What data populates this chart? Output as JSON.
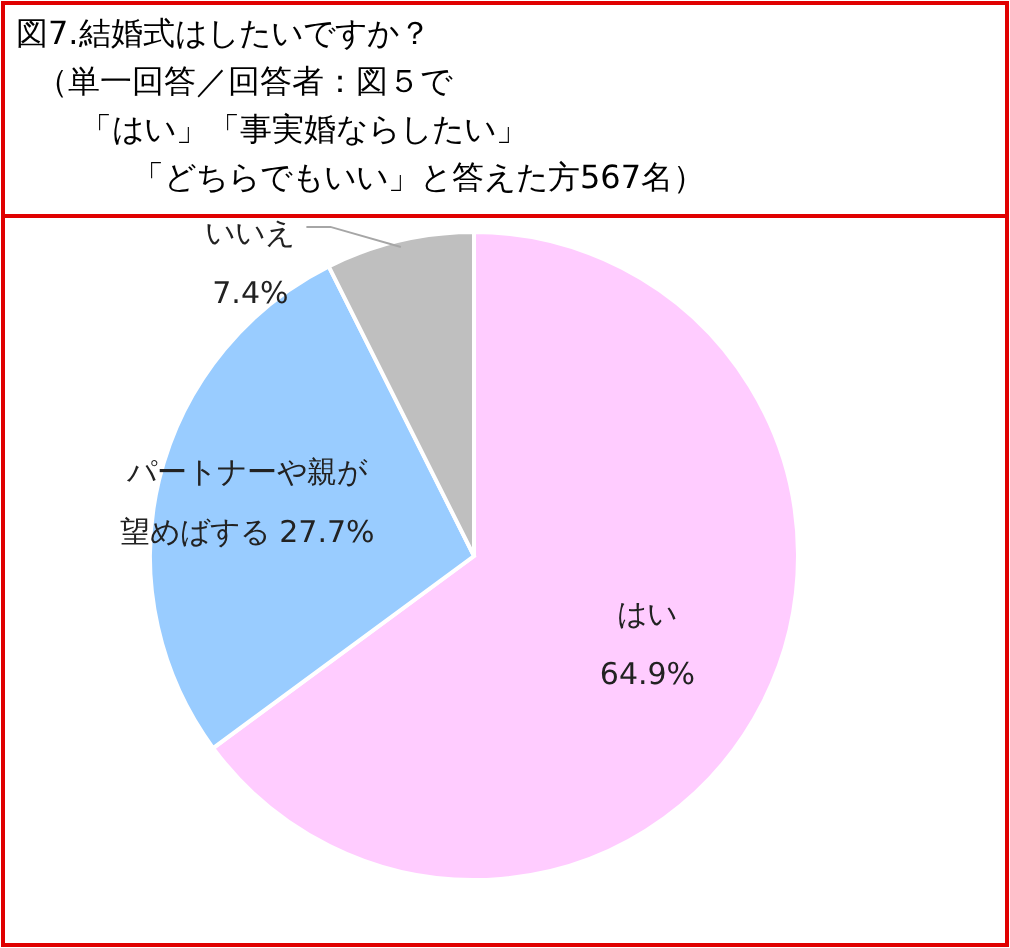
{
  "chart_data": {
    "type": "pie",
    "title": "図7.結婚式はしたいですか？",
    "annotations": [
      "（単一回答／回答者：図５で",
      "「はい」「事実婚ならしたい」",
      "「どちらでもいい」と答えた方567名）"
    ],
    "categories": [
      "はい",
      "パートナーや親が望めばする",
      "いいえ"
    ],
    "values": [
      64.9,
      27.7,
      7.4
    ],
    "value_labels": [
      "64.9%",
      "27.7%",
      "7.4%"
    ],
    "colors": [
      "#ffccff",
      "#99ccff",
      "#bfbfbf"
    ]
  }
}
